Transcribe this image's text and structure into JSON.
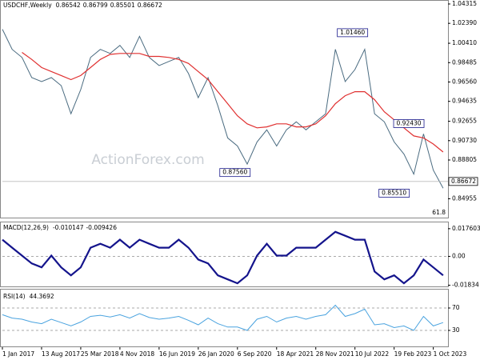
{
  "chart_data": [
    {
      "type": "line",
      "title": "USDCHF,Weekly",
      "ohlc": [
        0.86542,
        0.86799,
        0.85501,
        0.86672
      ],
      "watermark": "ActionForex.com",
      "fib_label": 61.8,
      "x": [
        0,
        8,
        16,
        24,
        32,
        40,
        48,
        56,
        64,
        72,
        80,
        88,
        96,
        104,
        112,
        120,
        128,
        136,
        144,
        152,
        160,
        168,
        176,
        184,
        192,
        200,
        208,
        216,
        224,
        232,
        240,
        248,
        256,
        264,
        272,
        280,
        288,
        296,
        304,
        312,
        320,
        328,
        336,
        344,
        352,
        360
      ],
      "xlim": [
        0,
        364
      ],
      "ylim": [
        0.8308,
        1.0471
      ],
      "yticks": [
        1.04315,
        {
          "value": 1.0239,
          "label": "1.02390"
        },
        {
          "value": 1.0041,
          "label": "1.00410"
        },
        0.98485,
        {
          "value": 0.9656,
          "label": "0.96560"
        },
        0.94635,
        0.92655,
        {
          "value": 0.9073,
          "label": "0.90730"
        },
        0.88805,
        0.84955
      ],
      "series": [
        {
          "color": "#4a6b80",
          "values": [
            1.018,
            0.998,
            0.99,
            0.97,
            0.966,
            0.97,
            0.962,
            0.934,
            0.958,
            0.99,
            0.998,
            0.994,
            1.002,
            0.99,
            1.011,
            0.99,
            0.982,
            0.986,
            0.99,
            0.974,
            0.95,
            0.97,
            0.942,
            0.91,
            0.902,
            0.884,
            0.906,
            0.918,
            0.902,
            0.918,
            0.926,
            0.918,
            0.926,
            0.934,
            0.998,
            0.966,
            0.978,
            0.998,
            0.934,
            0.926,
            0.906,
            0.894,
            0.874,
            0.914,
            0.878,
            0.86
          ]
        },
        {
          "color": "#e03030",
          "values": [
            null,
            null,
            0.995,
            0.988,
            0.98,
            0.976,
            0.972,
            0.968,
            0.972,
            0.98,
            0.988,
            0.993,
            0.994,
            0.994,
            0.994,
            0.991,
            0.991,
            0.99,
            0.988,
            0.984,
            0.976,
            0.968,
            0.956,
            0.944,
            0.932,
            0.924,
            0.92,
            0.921,
            0.924,
            0.924,
            0.921,
            0.921,
            0.924,
            0.932,
            0.944,
            0.952,
            0.956,
            0.956,
            0.948,
            0.936,
            0.928,
            0.92,
            0.912,
            0.91,
            0.904,
            0.896
          ]
        }
      ],
      "annotations": [
        {
          "x": 286,
          "value": 1.0146,
          "label": "1.01460"
        },
        {
          "x": 332,
          "value": 0.9243,
          "label": "0.92430"
        },
        {
          "x": 190,
          "value": 0.8756,
          "label": "0.87560"
        },
        {
          "x": 320,
          "value": 0.8551,
          "label": "0.85510"
        }
      ]
    },
    {
      "type": "line",
      "title": "MACD(12,26,9)",
      "readings": [
        -0.010147,
        -0.009426
      ],
      "x": [
        0,
        8,
        16,
        24,
        32,
        40,
        48,
        56,
        64,
        72,
        80,
        88,
        96,
        104,
        112,
        120,
        128,
        136,
        144,
        152,
        160,
        168,
        176,
        184,
        192,
        200,
        208,
        216,
        224,
        232,
        240,
        248,
        256,
        264,
        272,
        280,
        288,
        296,
        304,
        312,
        320,
        328,
        336,
        344,
        352,
        360
      ],
      "xlim": [
        0,
        364
      ],
      "ylim": [
        -0.0191,
        0.0216
      ],
      "yticks": [
        0.017603,
        {
          "value": 0,
          "label": "0.00"
        },
        -0.01834
      ],
      "series": [
        {
          "color": "#14148c",
          "values": [
            0.0106,
            0.0055,
            0.0005,
            -0.0045,
            -0.007,
            0.0005,
            -0.007,
            -0.0121,
            -0.007,
            0.0055,
            0.008,
            0.0055,
            0.0106,
            0.0055,
            0.0106,
            0.008,
            0.0055,
            0.0055,
            0.0106,
            0.0055,
            -0.002,
            -0.0045,
            -0.0121,
            -0.0146,
            -0.0171,
            -0.0121,
            0.0005,
            0.008,
            0.0005,
            0.0005,
            0.0055,
            0.0055,
            0.0055,
            0.0106,
            0.0156,
            0.0131,
            0.0106,
            0.0106,
            -0.0096,
            -0.0146,
            -0.0121,
            -0.0171,
            -0.0121,
            -0.002,
            -0.007,
            -0.0121
          ]
        }
      ]
    },
    {
      "type": "line",
      "title": "RSI(14)",
      "readings": [
        44.3692
      ],
      "x": [
        0,
        8,
        16,
        24,
        32,
        40,
        48,
        56,
        64,
        72,
        80,
        88,
        96,
        104,
        112,
        120,
        128,
        136,
        144,
        152,
        160,
        168,
        176,
        184,
        192,
        200,
        208,
        216,
        224,
        232,
        240,
        248,
        256,
        264,
        272,
        280,
        288,
        296,
        304,
        312,
        320,
        328,
        336,
        344,
        352,
        360
      ],
      "xlim": [
        0,
        364
      ],
      "ylim": [
        0,
        100
      ],
      "yticks": [
        70,
        30
      ],
      "xticks": [
        {
          "value": 0,
          "label": "1 Jan 2017"
        },
        {
          "value": 32,
          "label": "13 Aug 2017"
        },
        {
          "value": 64,
          "label": "25 Mar 2018"
        },
        {
          "value": 96,
          "label": "4 Nov 2018"
        },
        {
          "value": 128,
          "label": "16 Jun 2019"
        },
        {
          "value": 160,
          "label": "26 Jan 2020"
        },
        {
          "value": 192,
          "label": "6 Sep 2020"
        },
        {
          "value": 224,
          "label": "18 Apr 2021"
        },
        {
          "value": 256,
          "label": "28 Nov 2021"
        },
        {
          "value": 288,
          "label": "10 Jul 2022"
        },
        {
          "value": 320,
          "label": "19 Feb 2023"
        },
        {
          "value": 352,
          "label": "1 Oct 2023"
        }
      ],
      "series": [
        {
          "color": "#4aa3df",
          "values": [
            58,
            52,
            50,
            45,
            42,
            50,
            44,
            38,
            45,
            55,
            57,
            54,
            58,
            52,
            60,
            53,
            50,
            52,
            55,
            48,
            40,
            52,
            42,
            36,
            36,
            30,
            50,
            55,
            45,
            52,
            55,
            50,
            55,
            58,
            75,
            55,
            60,
            68,
            40,
            42,
            35,
            38,
            30,
            55,
            38,
            44
          ]
        }
      ]
    }
  ]
}
